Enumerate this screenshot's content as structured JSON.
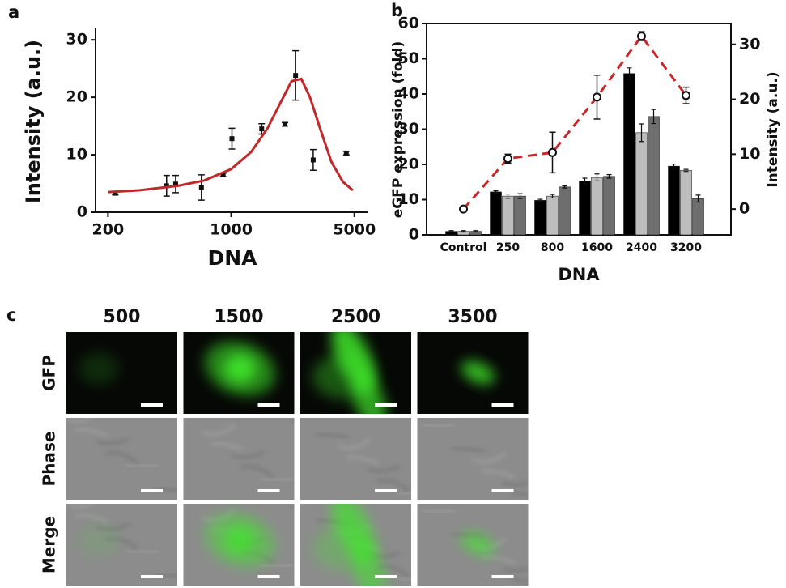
{
  "chart_data": [
    {
      "type": "scatter",
      "label": "a",
      "xlabel": "DNA",
      "ylabel": "Intensity (a.u.)",
      "log_x": true,
      "xlim": [
        170,
        6000
      ],
      "xticks": [
        200,
        1000,
        5000
      ],
      "ylim": [
        0,
        32
      ],
      "yticks": [
        0,
        10,
        20,
        30
      ],
      "series": [
        {
          "type": "scatter",
          "color": "#111111",
          "x": [
            220,
            430,
            484,
            678,
            900,
            1010,
            1490,
            2020,
            2320,
            2920,
            4500
          ],
          "values": [
            3.3,
            4.6,
            4.9,
            4.3,
            6.5,
            12.8,
            14.5,
            15.3,
            23.8,
            9.1,
            10.3
          ],
          "errors": [
            0.3,
            1.8,
            1.5,
            2.2,
            0.3,
            1.8,
            0.9,
            0.3,
            4.3,
            1.8,
            0.3
          ]
        },
        {
          "type": "line",
          "color": "#c0282a",
          "x": [
            200,
            300,
            500,
            700,
            1000,
            1300,
            1600,
            1900,
            2200,
            2500,
            2800,
            3200,
            3700,
            4300,
            4900
          ],
          "values": [
            3.5,
            3.8,
            4.6,
            5.5,
            7.5,
            10.5,
            14.5,
            19,
            22.8,
            23.2,
            20,
            14.5,
            8.8,
            5.3,
            3.8
          ]
        }
      ]
    },
    {
      "type": "bar",
      "label": "b",
      "xlabel": "DNA",
      "ylabel": "eGFP expression (fold)",
      "y2label": "Intensity (a.u.)",
      "categories": [
        "Control",
        "250",
        "800",
        "1600",
        "2400",
        "3200"
      ],
      "ylim": [
        0,
        60
      ],
      "yticks": [
        0,
        10,
        20,
        30,
        40,
        50,
        60
      ],
      "y2lim": [
        -4.7,
        33.8
      ],
      "y2ticks": [
        0,
        10,
        20,
        30
      ],
      "series": [
        {
          "color": "#000000",
          "values": [
            1,
            12.2,
            9.8,
            15.3,
            45.8,
            19.5
          ],
          "errors": [
            0.2,
            0.3,
            0.3,
            0.8,
            1.6,
            0.6
          ]
        },
        {
          "color": "#bdbdbd",
          "values": [
            1,
            11,
            11,
            16.3,
            29,
            18.3
          ],
          "errors": [
            0.2,
            0.6,
            0.5,
            1,
            2.5,
            0.3
          ]
        },
        {
          "color": "#6e6e6e",
          "values": [
            1,
            11,
            13.6,
            16.6,
            33.6,
            10.3
          ],
          "errors": [
            0.2,
            0.7,
            0.3,
            0.5,
            2,
            1
          ]
        },
        {
          "type": "line",
          "axis": "y2",
          "color": "#c8282a",
          "values": [
            0,
            9.2,
            10.3,
            20.4,
            31.5,
            20.7
          ],
          "errors": [
            0.3,
            0.8,
            3.7,
            4,
            0.8,
            1.5
          ]
        }
      ]
    }
  ],
  "panel_c": {
    "label": "c",
    "columns": [
      "500",
      "1500",
      "2500",
      "3500"
    ],
    "rows": [
      "GFP",
      "Phase",
      "Merge"
    ]
  }
}
